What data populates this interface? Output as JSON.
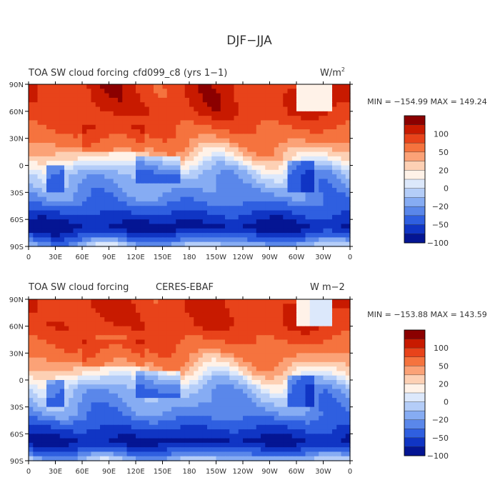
{
  "figure": {
    "title": "DJF−JJA"
  },
  "chart_data": [
    {
      "type": "heatmap",
      "title_left": "TOA SW cloud forcing",
      "title_center": "cfd099_c8 (yrs 1−1)",
      "units": "W/m",
      "units_superscript": "2",
      "stats": "MIN = −154.99  MAX = 149.24",
      "min": -154.99,
      "max": 149.24,
      "x_ticks": [
        "0",
        "30E",
        "60E",
        "90E",
        "120E",
        "150E",
        "180",
        "150W",
        "120W",
        "90W",
        "60W",
        "30W",
        "0"
      ],
      "y_ticks": [
        "90N",
        "60N",
        "30N",
        "0",
        "30S",
        "60S",
        "90S"
      ],
      "xlim": [
        0,
        360
      ],
      "ylim": [
        -90,
        90
      ],
      "colorbar_levels": [
        "100",
        "50",
        "20",
        "0",
        "−20",
        "−50",
        "−100"
      ]
    },
    {
      "type": "heatmap",
      "title_left": "TOA SW cloud forcing",
      "title_center": "CERES-EBAF",
      "units": "W m−2",
      "units_superscript": "",
      "stats": "MIN = −153.88  MAX = 143.59",
      "min": -153.88,
      "max": 143.59,
      "x_ticks": [
        "0",
        "30E",
        "60E",
        "90E",
        "120E",
        "150E",
        "180",
        "150W",
        "120W",
        "90W",
        "60W",
        "30W",
        "0"
      ],
      "y_ticks": [
        "90N",
        "60N",
        "30N",
        "0",
        "30S",
        "60S",
        "90S"
      ],
      "xlim": [
        0,
        360
      ],
      "ylim": [
        -90,
        90
      ],
      "colorbar_levels": [
        "100",
        "50",
        "20",
        "0",
        "−20",
        "−50",
        "−100"
      ]
    }
  ],
  "colorbar_colors": [
    "#8b0000",
    "#c81a00",
    "#e8431a",
    "#f5733e",
    "#fba277",
    "#fdd0b4",
    "#fff2e8",
    "#dce8fb",
    "#b4cdf8",
    "#86acf3",
    "#5a87ea",
    "#2f5fe0",
    "#1035c4",
    "#041593"
  ]
}
